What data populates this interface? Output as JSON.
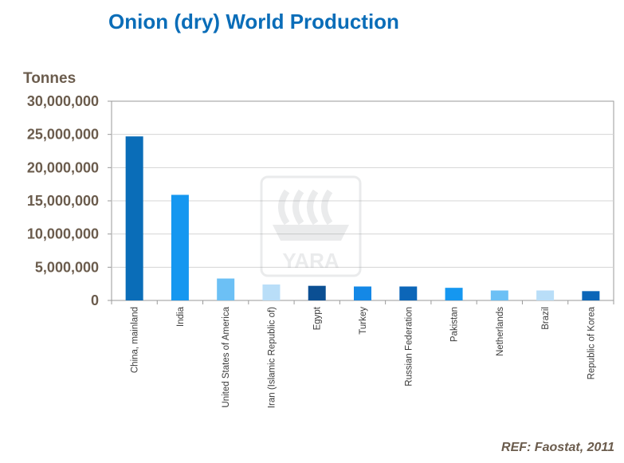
{
  "chart_data": {
    "type": "bar",
    "title": "Onion (dry) World Production",
    "ylabel": "Tonnes",
    "xlabel": "",
    "ylim": [
      0,
      30000000
    ],
    "yticks": [
      0,
      5000000,
      10000000,
      15000000,
      20000000,
      25000000,
      30000000
    ],
    "ytick_labels": [
      "0",
      "5,000,000",
      "10,000,000",
      "15,000,000",
      "20,000,000",
      "25,000,000",
      "30,000,000"
    ],
    "grid": true,
    "legend": "none",
    "categories": [
      "China, mainland",
      "India",
      "United States of America",
      "Iran (Islamic Republic of)",
      "Egypt",
      "Turkey",
      "Russian Federation",
      "Pakistan",
      "Netherlands",
      "Brazil",
      "Republic of Korea"
    ],
    "values": [
      24700000,
      15900000,
      3300000,
      2400000,
      2200000,
      2100000,
      2100000,
      1900000,
      1500000,
      1500000,
      1400000
    ],
    "colors": [
      "#0a6db8",
      "#1597f0",
      "#6cc0f5",
      "#b9def8",
      "#0b4f93",
      "#1488e6",
      "#0c66b8",
      "#1597f0",
      "#6cc0f5",
      "#b9def8",
      "#0c66b8"
    ],
    "watermark": "YARA"
  },
  "reference": "REF: Faostat,  2011"
}
